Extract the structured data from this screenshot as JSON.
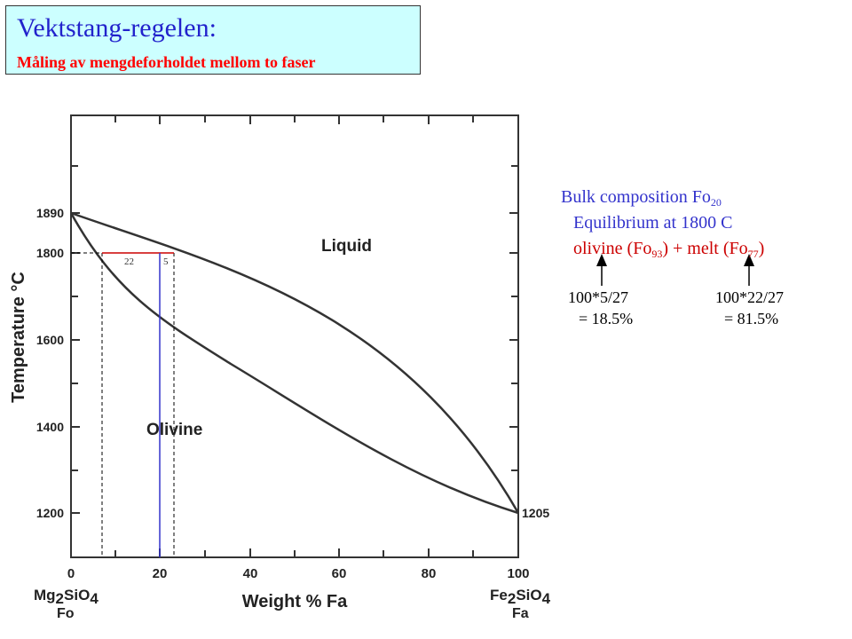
{
  "title": {
    "main": "Vektstang-regelen:",
    "subtitle": "Måling av mengdeforholdet mellom to faser"
  },
  "diagram": {
    "y_axis_label": "Temperature °C",
    "x_axis_label": "Weight % Fa",
    "y_ticks": [
      "1890",
      "1800",
      "1600",
      "1400",
      "1200"
    ],
    "x_ticks": [
      "0",
      "20",
      "40",
      "60",
      "80",
      "100"
    ],
    "label_1205": "1205",
    "field_liquid": "Liquid",
    "field_olivine": "Olivine",
    "lever_left": "22",
    "lever_right": "5",
    "endmember_left": {
      "formula_a": "Mg",
      "formula_b": "2",
      "formula_c": "SiO",
      "formula_d": "4",
      "abbr": "Fo"
    },
    "endmember_right": {
      "formula_a": "Fe",
      "formula_b": "2",
      "formula_c": "SiO",
      "formula_d": "4",
      "abbr": "Fa"
    },
    "colors": {
      "tie_line": "#cc0000",
      "bulk_line": "#3333cc",
      "curve": "#333333"
    }
  },
  "info": {
    "bulk_prefix": "Bulk composition Fo",
    "bulk_sub": "20",
    "equilibrium": "Equilibrium at 1800 C",
    "phase_a": "olivine (Fo",
    "phase_a_sub": "93",
    "phase_mid": ") + melt (Fo",
    "phase_b_sub": "77",
    "phase_end": ")"
  },
  "calc": {
    "left_expr": "100*5/27",
    "left_result": "= 18.5%",
    "right_expr": "100*22/27",
    "right_result": "= 81.5%"
  }
}
